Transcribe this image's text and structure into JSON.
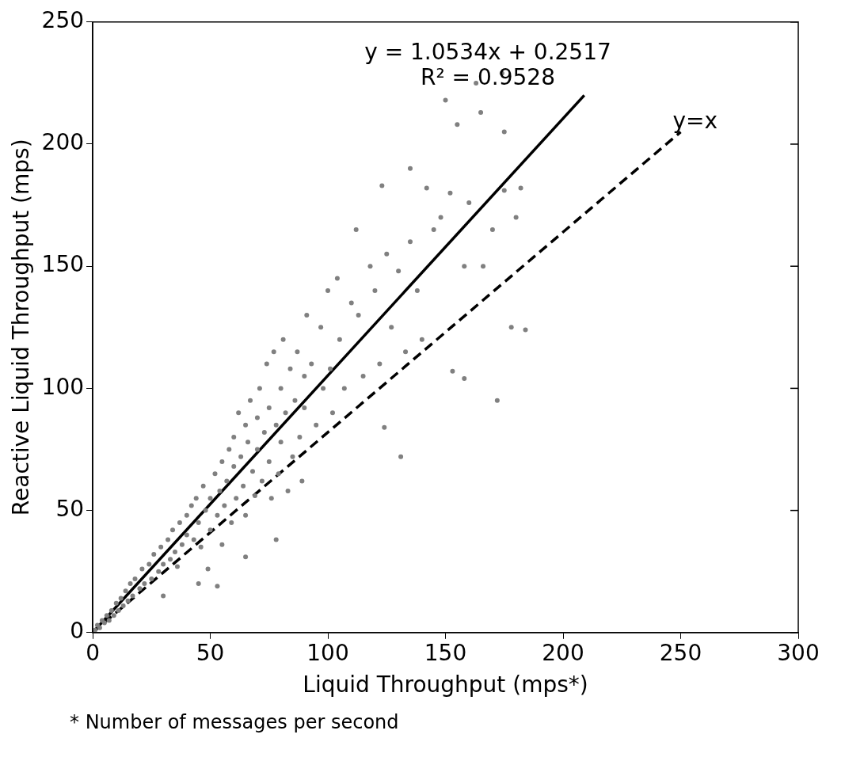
{
  "chart_data": {
    "type": "scatter",
    "xlabel": "Liquid Throughput (mps*)",
    "ylabel": "Reactive Liquid Throughput (mps)",
    "xlim": [
      0,
      300
    ],
    "ylim": [
      0,
      250
    ],
    "xticks": [
      0,
      50,
      100,
      150,
      200,
      250,
      300
    ],
    "yticks": [
      0,
      50,
      100,
      150,
      200,
      250
    ],
    "marker": "circle",
    "grid": false,
    "annotations": [
      "y = 1.0534x + 0.2517",
      "R² = 0.9528",
      "* Number of messages per second"
    ],
    "series": [
      {
        "color": "#808080",
        "x": [
          1,
          2,
          3,
          4,
          5,
          6,
          7,
          8,
          9,
          10,
          11,
          12,
          13,
          14,
          15,
          16,
          17,
          18,
          20,
          21,
          22,
          24,
          25,
          26,
          28,
          29,
          30,
          32,
          33,
          34,
          35,
          36,
          37,
          38,
          40,
          40,
          42,
          43,
          44,
          45,
          46,
          47,
          48,
          49,
          50,
          50,
          52,
          53,
          54,
          55,
          55,
          56,
          57,
          58,
          59,
          60,
          60,
          61,
          62,
          63,
          64,
          65,
          65,
          66,
          67,
          68,
          69,
          70,
          70,
          71,
          72,
          73,
          74,
          75,
          75,
          76,
          77,
          78,
          79,
          80,
          80,
          81,
          82,
          83,
          84,
          85,
          86,
          87,
          88,
          89,
          90,
          90,
          91,
          93,
          95,
          97,
          98,
          100,
          101,
          102,
          104,
          105,
          107,
          110,
          112,
          113,
          115,
          118,
          120,
          122,
          123,
          124,
          125,
          127,
          130,
          131,
          133,
          135,
          135,
          138,
          140,
          142,
          145,
          148,
          150,
          152,
          153,
          155,
          158,
          158,
          160,
          163,
          165,
          166,
          170,
          172,
          174,
          175,
          175,
          178,
          180,
          182,
          184,
          45,
          53,
          30,
          65,
          78
        ],
        "values": [
          1,
          3,
          2,
          5,
          4,
          7,
          5,
          9,
          7,
          12,
          9,
          14,
          11,
          17,
          13,
          20,
          15,
          22,
          18,
          26,
          20,
          28,
          22,
          32,
          25,
          35,
          28,
          38,
          30,
          42,
          33,
          27,
          45,
          36,
          48,
          40,
          52,
          38,
          55,
          45,
          35,
          60,
          50,
          26,
          55,
          42,
          65,
          48,
          58,
          70,
          36,
          52,
          62,
          75,
          45,
          68,
          80,
          55,
          90,
          72,
          60,
          85,
          48,
          78,
          95,
          66,
          56,
          88,
          75,
          100,
          62,
          82,
          110,
          70,
          92,
          55,
          115,
          85,
          65,
          100,
          78,
          120,
          90,
          58,
          108,
          72,
          95,
          115,
          80,
          62,
          105,
          92,
          130,
          110,
          85,
          125,
          100,
          140,
          108,
          90,
          145,
          120,
          100,
          135,
          165,
          130,
          105,
          150,
          140,
          110,
          183,
          84,
          155,
          125,
          148,
          72,
          115,
          190,
          160,
          140,
          120,
          182,
          165,
          170,
          218,
          180,
          107,
          208,
          104,
          150,
          176,
          225,
          213,
          150,
          165,
          95,
          229,
          205,
          181,
          125,
          170,
          182,
          124,
          20,
          19,
          15,
          31,
          38
        ]
      },
      {
        "type": "line",
        "color": "#000000",
        "line_style": "solid",
        "marker": "none",
        "x": [
          0,
          209
        ],
        "values": [
          0,
          220
        ]
      },
      {
        "type": "line",
        "name": "y=x",
        "color": "#000000",
        "line_style": "dashed",
        "marker": "none",
        "x": [
          0,
          250
        ],
        "values": [
          0,
          205
        ]
      }
    ]
  }
}
